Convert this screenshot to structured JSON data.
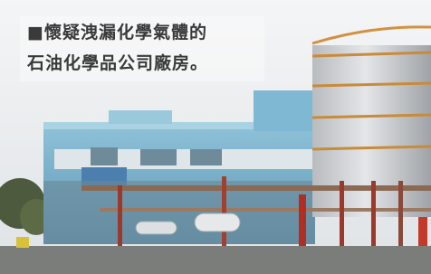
{
  "caption": {
    "lines": [
      "■懷疑洩漏化學氣體的",
      "石油化學品公司廠房。"
    ]
  }
}
